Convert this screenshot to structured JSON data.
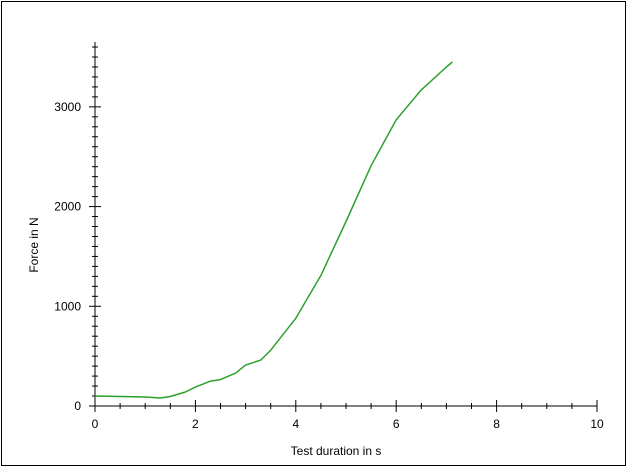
{
  "chart_data": {
    "type": "line",
    "title": "",
    "xlabel": "Test duration in s",
    "ylabel": "Force in N",
    "xlim": [
      0,
      10
    ],
    "ylim": [
      0,
      3500
    ],
    "x_ticks": [
      0,
      2,
      4,
      6,
      8,
      10
    ],
    "y_ticks": [
      0,
      1000,
      2000,
      3000
    ],
    "x_minor_step": 0.5,
    "y_minor_step": 100,
    "grid": false,
    "legend": "none",
    "series": [
      {
        "color": "#2ca02c",
        "x": [
          0.0,
          0.5,
          1.0,
          1.3,
          1.5,
          1.8,
          2.0,
          2.3,
          2.5,
          2.8,
          3.0,
          3.3,
          3.5,
          4.0,
          4.5,
          5.0,
          5.5,
          6.0,
          6.5,
          7.0,
          7.12
        ],
        "y": [
          100,
          95,
          90,
          80,
          95,
          140,
          190,
          250,
          265,
          330,
          410,
          460,
          560,
          880,
          1310,
          1850,
          2410,
          2870,
          3170,
          3400,
          3450
        ]
      }
    ]
  }
}
